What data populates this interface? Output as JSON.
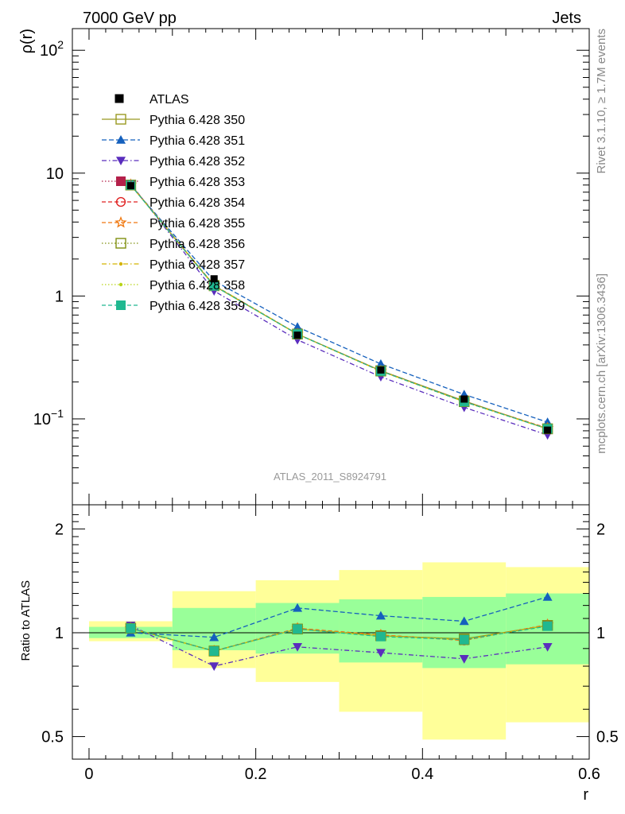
{
  "header": {
    "left": "7000 GeV pp",
    "right": "Jets"
  },
  "side_labels": {
    "top": "Rivet 3.1.10, ≥ 1.7M events",
    "bottom": "mcplots.cern.ch [arXiv:1306.3436]"
  },
  "watermark": "ATLAS_2011_S8924791",
  "chart_data": [
    {
      "type": "line",
      "ylabel": "ρ(r)",
      "yscale": "log",
      "ylim": [
        0.02,
        150
      ],
      "xlim": [
        -0.02,
        0.6
      ],
      "yticks": [
        {
          "value": 100,
          "base": "10",
          "exp": "2"
        },
        {
          "value": 10,
          "base": "10",
          "exp": ""
        },
        {
          "value": 1,
          "base": "1",
          "exp": ""
        },
        {
          "value": 0.1,
          "base": "10",
          "exp": "−1"
        }
      ],
      "x": [
        0.05,
        0.15,
        0.25,
        0.35,
        0.45,
        0.55
      ],
      "data": {
        "name": "ATLAS",
        "values": [
          7.9,
          1.38,
          0.48,
          0.25,
          0.145,
          0.081
        ]
      },
      "series": [
        {
          "name": "Pythia 6.428 350",
          "color": "#999922",
          "dash": "",
          "marker": "square-open",
          "values": [
            8.0,
            1.21,
            0.49,
            0.247,
            0.14,
            0.083
          ]
        },
        {
          "name": "Pythia 6.428 351",
          "color": "#1560bd",
          "dash": "6,3",
          "marker": "triangle-up",
          "values": [
            7.95,
            1.33,
            0.56,
            0.28,
            0.158,
            0.094
          ]
        },
        {
          "name": "Pythia 6.428 352",
          "color": "#5a2dbd",
          "dash": "6,3,1.5,3",
          "marker": "triangle-down",
          "values": [
            8.2,
            1.1,
            0.44,
            0.22,
            0.124,
            0.074
          ]
        },
        {
          "name": "Pythia 6.428 353",
          "color": "#b4204a",
          "dash": "1.5,2.5",
          "marker": "square-solid",
          "values": [
            8.05,
            1.22,
            0.49,
            0.246,
            0.139,
            0.083
          ]
        },
        {
          "name": "Pythia 6.428 354",
          "color": "#e02020",
          "dash": "5,3",
          "marker": "circle-open",
          "values": [
            8.05,
            1.22,
            0.49,
            0.246,
            0.138,
            0.084
          ]
        },
        {
          "name": "Pythia 6.428 355",
          "color": "#f07810",
          "dash": "5,3",
          "marker": "star-open",
          "values": [
            8.05,
            1.22,
            0.49,
            0.245,
            0.138,
            0.084
          ]
        },
        {
          "name": "Pythia 6.428 356",
          "color": "#809010",
          "dash": "1.5,2.5",
          "marker": "square-open",
          "values": [
            8.0,
            1.22,
            0.49,
            0.245,
            0.138,
            0.083
          ]
        },
        {
          "name": "Pythia 6.428 357",
          "color": "#d4b400",
          "dash": "6,3,1.5,3",
          "marker": "dot",
          "values": [
            8.0,
            1.22,
            0.49,
            0.245,
            0.138,
            0.083
          ]
        },
        {
          "name": "Pythia 6.428 358",
          "color": "#b8d418",
          "dash": "1.5,2.5",
          "marker": "dot",
          "values": [
            8.0,
            1.21,
            0.49,
            0.245,
            0.138,
            0.083
          ]
        },
        {
          "name": "Pythia 6.428 359",
          "color": "#20b890",
          "dash": "5,3",
          "marker": "square-solid",
          "values": [
            8.0,
            1.21,
            0.49,
            0.245,
            0.138,
            0.083
          ]
        }
      ],
      "legend_position": "top-left"
    },
    {
      "type": "line",
      "ylabel": "Ratio to ATLAS",
      "xlabel": "r",
      "yscale": "log",
      "ylim": [
        0.43,
        2.35
      ],
      "xlim": [
        -0.02,
        0.6
      ],
      "yticks": [
        {
          "value": 2,
          "label": "2"
        },
        {
          "value": 1,
          "label": "1"
        },
        {
          "value": 0.5,
          "label": "0.5"
        }
      ],
      "xticks": [
        {
          "value": 0,
          "label": "0"
        },
        {
          "value": 0.2,
          "label": "0.2"
        },
        {
          "value": 0.4,
          "label": "0.4"
        },
        {
          "value": 0.6,
          "label": "0.6"
        }
      ],
      "bins": [
        [
          0.0,
          0.1
        ],
        [
          0.1,
          0.2
        ],
        [
          0.2,
          0.3
        ],
        [
          0.3,
          0.4
        ],
        [
          0.4,
          0.5
        ],
        [
          0.5,
          0.6
        ]
      ],
      "band_outer": [
        [
          0.945,
          1.08
        ],
        [
          0.79,
          1.32
        ],
        [
          0.72,
          1.42
        ],
        [
          0.59,
          1.52
        ],
        [
          0.49,
          1.6
        ],
        [
          0.55,
          1.55
        ]
      ],
      "band_inner": [
        [
          0.965,
          1.04
        ],
        [
          0.89,
          1.18
        ],
        [
          0.87,
          1.22
        ],
        [
          0.82,
          1.25
        ],
        [
          0.79,
          1.27
        ],
        [
          0.81,
          1.3
        ]
      ],
      "x": [
        0.05,
        0.15,
        0.25,
        0.35,
        0.45,
        0.55
      ],
      "series": [
        {
          "name": "Pythia 6.428 350",
          "values": [
            1.03,
            0.885,
            1.025,
            0.98,
            0.96,
            1.05
          ]
        },
        {
          "name": "Pythia 6.428 351",
          "values": [
            1.0,
            0.97,
            1.18,
            1.12,
            1.08,
            1.27
          ]
        },
        {
          "name": "Pythia 6.428 352",
          "values": [
            1.05,
            0.8,
            0.91,
            0.875,
            0.84,
            0.91
          ]
        },
        {
          "name": "Pythia 6.428 353",
          "values": [
            1.03,
            0.885,
            1.025,
            0.98,
            0.955,
            1.05
          ]
        },
        {
          "name": "Pythia 6.428 354",
          "values": [
            1.03,
            0.885,
            1.03,
            0.985,
            0.95,
            1.055
          ]
        },
        {
          "name": "Pythia 6.428 355",
          "values": [
            1.03,
            0.885,
            1.03,
            0.985,
            0.95,
            1.055
          ]
        },
        {
          "name": "Pythia 6.428 356",
          "values": [
            1.03,
            0.885,
            1.025,
            0.98,
            0.955,
            1.05
          ]
        },
        {
          "name": "Pythia 6.428 357",
          "values": [
            1.03,
            0.885,
            1.025,
            0.98,
            0.955,
            1.05
          ]
        },
        {
          "name": "Pythia 6.428 358",
          "values": [
            1.03,
            0.885,
            1.025,
            0.98,
            0.955,
            1.05
          ]
        },
        {
          "name": "Pythia 6.428 359",
          "values": [
            1.03,
            0.885,
            1.025,
            0.975,
            0.955,
            1.045
          ]
        }
      ],
      "colors": {
        "band_outer": "#ffff99",
        "band_inner": "#99ff99"
      }
    }
  ]
}
